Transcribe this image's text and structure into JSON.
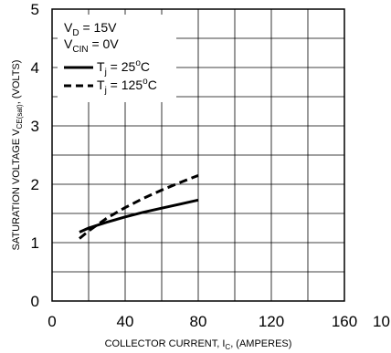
{
  "chart_data": {
    "type": "line",
    "title": "",
    "xlabel": {
      "main": "COLLECTOR CURRENT, I",
      "sub": "C",
      "suffix": ", (AMPERES)"
    },
    "ylabel": {
      "main": "SATURATION VOLTAGE V",
      "sub": "CE(sat)",
      "suffix": ", (VOLTS)"
    },
    "xlim": [
      0,
      160
    ],
    "ylim": [
      0,
      5
    ],
    "x_ticks": [
      "0",
      "40",
      "80",
      "120",
      "160"
    ],
    "x_tick_extra": "10",
    "y_ticks": [
      "0",
      "1",
      "2",
      "3",
      "4",
      "5"
    ],
    "grid": true,
    "legend_position": "top-left",
    "conditions": [
      {
        "main": "V",
        "sub": "D",
        "suffix": " = 15V"
      },
      {
        "main": "V",
        "sub": "CIN",
        "suffix": " = 0V"
      }
    ],
    "series": [
      {
        "legend": {
          "main": "T",
          "sub": "j",
          "suffix": " = 25",
          "sup": "o",
          "unit": "C"
        },
        "style": "solid",
        "x": [
          15,
          20,
          30,
          40,
          50,
          60,
          70,
          80
        ],
        "y": [
          1.18,
          1.25,
          1.35,
          1.44,
          1.52,
          1.59,
          1.66,
          1.73
        ]
      },
      {
        "legend": {
          "main": "T",
          "sub": "j",
          "suffix": " = 125",
          "sup": "o",
          "unit": "C"
        },
        "style": "dashed",
        "x": [
          15,
          20,
          30,
          40,
          50,
          60,
          70,
          80
        ],
        "y": [
          1.07,
          1.2,
          1.42,
          1.6,
          1.76,
          1.9,
          2.03,
          2.15
        ]
      }
    ]
  }
}
